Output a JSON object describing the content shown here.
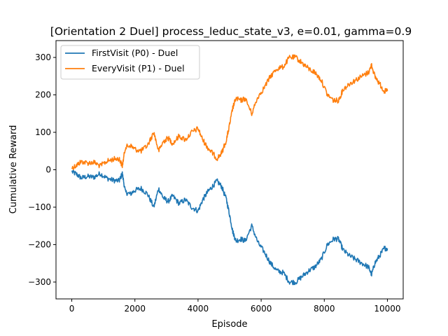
{
  "chart_data": {
    "type": "line",
    "title": "[Orientation 2 Duel] process_leduc_state_v3, e=0.01, gamma=0.9",
    "xlabel": "Episode",
    "ylabel": "Cumulative Reward",
    "xlim": [
      -500,
      10500
    ],
    "ylim": [
      -345,
      345
    ],
    "xticks": [
      0,
      2000,
      4000,
      6000,
      8000,
      10000
    ],
    "xtick_labels": [
      "0",
      "2000",
      "4000",
      "6000",
      "8000",
      "10000"
    ],
    "yticks": [
      -300,
      -200,
      -100,
      0,
      100,
      200,
      300
    ],
    "ytick_labels": [
      "−300",
      "−200",
      "−100",
      "0",
      "100",
      "200",
      "300"
    ],
    "grid": false,
    "legend_position": "top-left",
    "series": [
      {
        "name": "FirstVisit (P0) - Duel",
        "color": "#1f77b4",
        "x": [
          0,
          150,
          300,
          500,
          700,
          900,
          1100,
          1300,
          1500,
          1600,
          1700,
          1850,
          2000,
          2200,
          2400,
          2600,
          2750,
          2900,
          3050,
          3200,
          3400,
          3600,
          3800,
          4000,
          4150,
          4300,
          4450,
          4600,
          4750,
          4900,
          5000,
          5100,
          5200,
          5350,
          5500,
          5700,
          5900,
          6100,
          6300,
          6500,
          6700,
          6900,
          7100,
          7300,
          7500,
          7700,
          7900,
          8100,
          8300,
          8450,
          8600,
          8800,
          9000,
          9200,
          9400,
          9500,
          9600,
          9750,
          9900,
          10000
        ],
        "y": [
          -5,
          -12,
          -22,
          -18,
          -20,
          -10,
          -22,
          -28,
          -30,
          -10,
          -60,
          -65,
          -55,
          -50,
          -65,
          -100,
          -50,
          -75,
          -85,
          -70,
          -90,
          -80,
          -100,
          -110,
          -80,
          -60,
          -45,
          -30,
          -45,
          -80,
          -120,
          -165,
          -190,
          -185,
          -190,
          -150,
          -195,
          -220,
          -250,
          -270,
          -275,
          -300,
          -300,
          -285,
          -270,
          -260,
          -240,
          -200,
          -185,
          -185,
          -215,
          -230,
          -240,
          -250,
          -260,
          -280,
          -250,
          -230,
          -210,
          -210
        ]
      },
      {
        "name": "EveryVisit (P1) - Duel",
        "color": "#ff7f0e",
        "x": [
          0,
          150,
          300,
          500,
          700,
          900,
          1100,
          1300,
          1500,
          1600,
          1700,
          1850,
          2000,
          2200,
          2400,
          2600,
          2750,
          2900,
          3050,
          3200,
          3400,
          3600,
          3800,
          4000,
          4150,
          4300,
          4450,
          4600,
          4750,
          4900,
          5000,
          5100,
          5200,
          5350,
          5500,
          5700,
          5900,
          6100,
          6300,
          6500,
          6700,
          6900,
          7100,
          7300,
          7500,
          7700,
          7900,
          8100,
          8300,
          8450,
          8600,
          8800,
          9000,
          9200,
          9400,
          9500,
          9600,
          9750,
          9900,
          10000
        ],
        "y": [
          5,
          12,
          22,
          18,
          20,
          10,
          22,
          28,
          30,
          10,
          60,
          65,
          55,
          50,
          65,
          100,
          50,
          75,
          85,
          70,
          90,
          80,
          100,
          110,
          80,
          60,
          45,
          30,
          45,
          80,
          120,
          165,
          190,
          185,
          190,
          150,
          195,
          220,
          250,
          270,
          275,
          300,
          300,
          285,
          270,
          260,
          240,
          200,
          185,
          185,
          215,
          230,
          240,
          250,
          260,
          280,
          250,
          230,
          210,
          210
        ]
      }
    ]
  }
}
